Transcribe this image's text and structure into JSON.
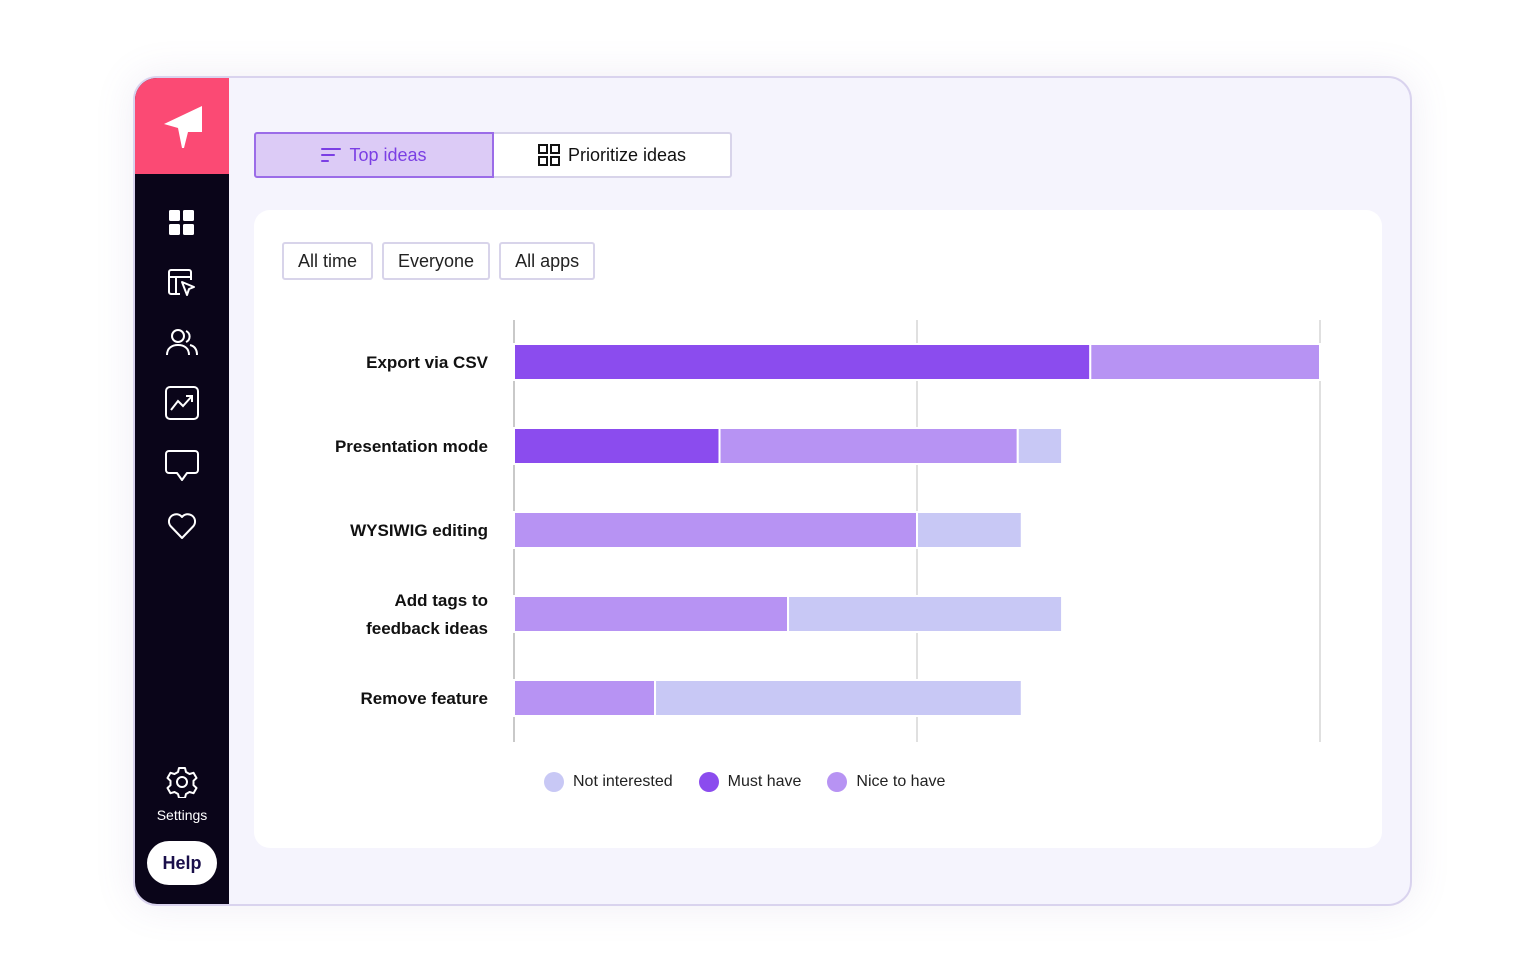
{
  "tabs": [
    {
      "label": "Top ideas",
      "icon": "sort-lines-icon",
      "active": true
    },
    {
      "label": "Prioritize ideas",
      "icon": "grid-icon",
      "active": false
    }
  ],
  "filters": [
    "All time",
    "Everyone",
    "All apps"
  ],
  "sidebar": {
    "nav_icons": [
      "dashboard-icon",
      "survey-cursor-icon",
      "users-icon",
      "analytics-icon",
      "feedback-icon",
      "heart-icon"
    ],
    "settings_label": "Settings",
    "help_label": "Help"
  },
  "colors": {
    "brand": "#fb4a74",
    "sidebar": "#0a0519",
    "must_have": "#8b4cee",
    "nice_to_have": "#b793f3",
    "not_interested": "#c8c8f5"
  },
  "chart_data": {
    "type": "bar",
    "orientation": "horizontal",
    "stacked": true,
    "categories": [
      "Export via CSV",
      "Presentation mode",
      "WYSIWIG editing",
      "Add tags to feedback ideas",
      "Remove feature"
    ],
    "category_lines": [
      [
        "Export via CSV"
      ],
      [
        "Presentation mode"
      ],
      [
        "WYSIWIG editing"
      ],
      [
        "Add tags to",
        "feedback ideas"
      ],
      [
        "Remove feature"
      ]
    ],
    "series": [
      {
        "name": "Must have",
        "color": "#8b4cee",
        "values": [
          143,
          51,
          0,
          0,
          0
        ]
      },
      {
        "name": "Nice to have",
        "color": "#b793f3",
        "values": [
          57,
          74,
          100,
          68,
          35
        ]
      },
      {
        "name": "Not interested",
        "color": "#c8c8f5",
        "values": [
          0,
          11,
          26,
          68,
          91
        ]
      }
    ],
    "legend": [
      {
        "name": "Not interested",
        "color": "#c8c8f5"
      },
      {
        "name": "Must have",
        "color": "#8b4cee"
      },
      {
        "name": "Nice to have",
        "color": "#b793f3"
      }
    ],
    "xlim": [
      0,
      200
    ],
    "grid": true,
    "legend_position": "bottom"
  }
}
